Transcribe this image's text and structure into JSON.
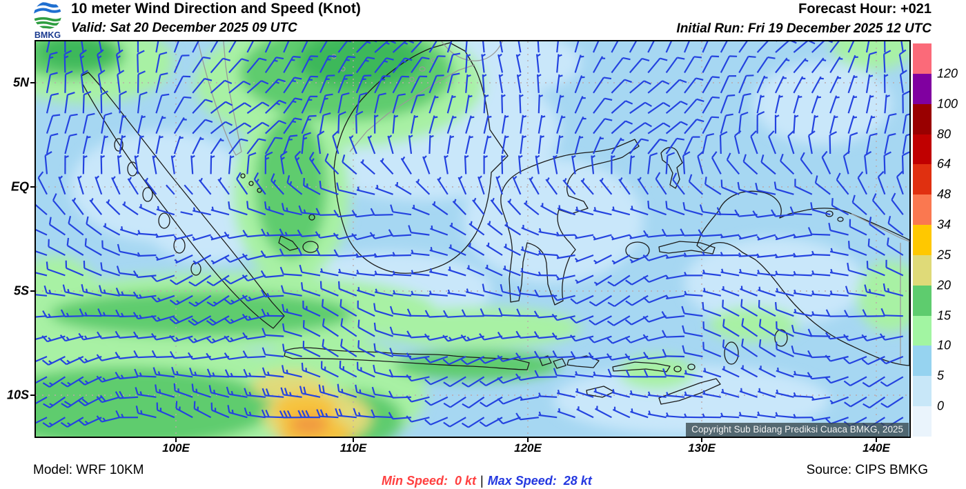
{
  "header": {
    "logo_text": "BMKG",
    "title": "10 meter Wind Direction and Speed (Knot)",
    "valid": "Valid: Sat 20 December 2025 09 UTC",
    "forecast_hour": "Forecast Hour: +021",
    "initial_run": "Initial Run: Fri 19 December 2025 12 UTC"
  },
  "map": {
    "copyright": "Copyright Sub Bidang Prediksi Cuaca BMKG, 2025",
    "lat_labels": [
      "5N",
      "EQ",
      "5S",
      "10S"
    ],
    "lon_labels": [
      "100E",
      "110E",
      "120E",
      "130E",
      "140E"
    ],
    "barb_color": "#2443DF",
    "ocean_base": "#A6D7F2",
    "gridline_color": "#BBA9A9",
    "coast_color": "#1a1a1a",
    "foreign_coast_color": "#9a9a9a"
  },
  "colorbar": {
    "ticks": [
      "120",
      "100",
      "80",
      "64",
      "48",
      "34",
      "25",
      "20",
      "15",
      "10",
      "5",
      "0"
    ],
    "segments": [
      "#FB6A79",
      "#8000A0",
      "#990000",
      "#C00000",
      "#E03010",
      "#FA7850",
      "#FFC800",
      "#DFDA78",
      "#5ECC6E",
      "#A2F5A2",
      "#96D3F0",
      "#C8E7F8",
      "#EAF4FC"
    ]
  },
  "footer": {
    "model": "Model: WRF 10KM",
    "min_speed": "Min Speed:  0 kt",
    "separator": "|",
    "max_speed": "Max Speed:  28 kt",
    "source": "Source: CIPS BMKG"
  }
}
